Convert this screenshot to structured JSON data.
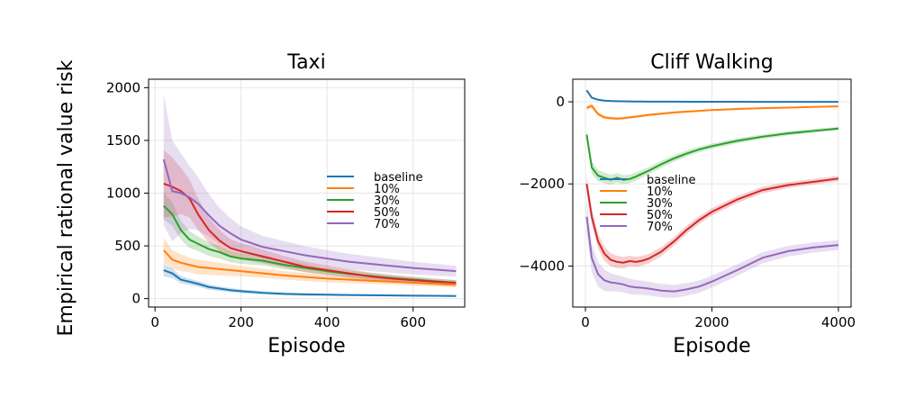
{
  "ylabel": "Empirical rational value risk",
  "colors": {
    "baseline": "#1f77b4",
    "10%": "#ff7f0e",
    "30%": "#2ca02c",
    "50%": "#d62728",
    "70%": "#9467bd"
  },
  "chart_data": [
    {
      "type": "line",
      "title": "Taxi",
      "xlabel": "Episode",
      "ylabel": "Empirical rational value risk",
      "xlim": [
        -15,
        720
      ],
      "ylim": [
        -80,
        2080
      ],
      "xticks": [
        0,
        200,
        400,
        600
      ],
      "yticks": [
        0,
        500,
        1000,
        1500,
        2000
      ],
      "grid": true,
      "legend_position": "center-right",
      "x": [
        20,
        40,
        60,
        80,
        100,
        125,
        150,
        175,
        200,
        250,
        300,
        350,
        400,
        450,
        500,
        550,
        600,
        650,
        700
      ],
      "series": [
        {
          "name": "baseline",
          "values": [
            270,
            240,
            180,
            160,
            140,
            110,
            95,
            80,
            70,
            55,
            45,
            40,
            37,
            34,
            32,
            30,
            28,
            27,
            25
          ],
          "band": [
            60,
            45,
            35,
            30,
            28,
            25,
            22,
            20,
            18,
            15,
            13,
            12,
            11,
            10,
            10,
            9,
            9,
            8,
            8
          ]
        },
        {
          "name": "10%",
          "values": [
            460,
            370,
            340,
            320,
            300,
            290,
            280,
            270,
            260,
            240,
            220,
            205,
            190,
            180,
            170,
            160,
            150,
            140,
            130
          ],
          "band": [
            120,
            90,
            80,
            70,
            70,
            65,
            60,
            55,
            50,
            45,
            40,
            38,
            35,
            33,
            30,
            28,
            27,
            26,
            25
          ]
        },
        {
          "name": "30%",
          "values": [
            880,
            800,
            650,
            560,
            520,
            470,
            440,
            400,
            380,
            360,
            320,
            290,
            260,
            235,
            215,
            195,
            180,
            165,
            150
          ],
          "band": [
            130,
            110,
            90,
            80,
            70,
            65,
            60,
            55,
            50,
            45,
            40,
            38,
            35,
            33,
            30,
            28,
            26,
            25,
            24
          ]
        },
        {
          "name": "50%",
          "values": [
            1090,
            1060,
            1020,
            950,
            800,
            650,
            550,
            480,
            450,
            400,
            350,
            300,
            270,
            240,
            210,
            190,
            175,
            160,
            150
          ],
          "band": [
            320,
            280,
            220,
            180,
            150,
            120,
            100,
            85,
            75,
            65,
            55,
            50,
            45,
            40,
            37,
            34,
            31,
            28,
            26
          ]
        },
        {
          "name": "70%",
          "values": [
            1320,
            1020,
            1000,
            960,
            900,
            790,
            690,
            620,
            560,
            490,
            450,
            410,
            380,
            350,
            330,
            310,
            290,
            275,
            260
          ],
          "band": [
            620,
            480,
            380,
            300,
            250,
            200,
            170,
            145,
            125,
            105,
            95,
            85,
            80,
            75,
            70,
            65,
            60,
            56,
            52
          ]
        }
      ]
    },
    {
      "type": "line",
      "title": "Cliff Walking",
      "xlabel": "Episode",
      "xlim": [
        -200,
        4200
      ],
      "ylim": [
        -5000,
        550
      ],
      "xticks": [
        0,
        2000,
        4000
      ],
      "yticks": [
        0,
        -2000,
        -4000
      ],
      "grid": true,
      "legend_position": "center-left",
      "x": [
        20,
        100,
        200,
        300,
        400,
        500,
        600,
        700,
        800,
        900,
        1000,
        1200,
        1400,
        1600,
        1800,
        2000,
        2400,
        2800,
        3200,
        3600,
        4000
      ],
      "series": [
        {
          "name": "baseline",
          "values": [
            280,
            100,
            50,
            30,
            20,
            15,
            12,
            10,
            8,
            6,
            5,
            4,
            3,
            2,
            2,
            1,
            1,
            0,
            0,
            0,
            0
          ],
          "band": [
            40,
            20,
            10,
            8,
            6,
            5,
            4,
            4,
            3,
            3,
            3,
            2,
            2,
            2,
            2,
            2,
            2,
            2,
            2,
            2,
            2
          ]
        },
        {
          "name": "10%",
          "values": [
            -150,
            -100,
            -300,
            -380,
            -400,
            -410,
            -400,
            -380,
            -360,
            -340,
            -320,
            -290,
            -260,
            -240,
            -220,
            -200,
            -175,
            -155,
            -140,
            -125,
            -110
          ],
          "band": [
            60,
            60,
            50,
            45,
            40,
            40,
            38,
            35,
            33,
            32,
            30,
            28,
            26,
            24,
            22,
            20,
            18,
            16,
            15,
            14,
            13
          ]
        },
        {
          "name": "30%",
          "values": [
            -800,
            -1600,
            -1800,
            -1850,
            -1900,
            -1850,
            -1900,
            -1880,
            -1820,
            -1750,
            -1680,
            -1520,
            -1380,
            -1260,
            -1160,
            -1080,
            -950,
            -850,
            -770,
            -710,
            -650
          ],
          "band": [
            120,
            150,
            140,
            130,
            120,
            115,
            110,
            105,
            100,
            95,
            90,
            85,
            80,
            75,
            70,
            65,
            60,
            55,
            50,
            45,
            40
          ]
        },
        {
          "name": "50%",
          "values": [
            -2000,
            -2800,
            -3400,
            -3700,
            -3850,
            -3900,
            -3920,
            -3880,
            -3900,
            -3870,
            -3820,
            -3650,
            -3400,
            -3120,
            -2880,
            -2680,
            -2380,
            -2150,
            -2030,
            -1950,
            -1870
          ],
          "band": [
            200,
            200,
            180,
            170,
            160,
            150,
            140,
            130,
            125,
            120,
            115,
            110,
            105,
            100,
            95,
            90,
            85,
            80,
            75,
            70,
            65
          ]
        },
        {
          "name": "70%",
          "values": [
            -2800,
            -3800,
            -4200,
            -4350,
            -4400,
            -4420,
            -4450,
            -4500,
            -4520,
            -4530,
            -4550,
            -4600,
            -4620,
            -4570,
            -4500,
            -4380,
            -4100,
            -3800,
            -3640,
            -3550,
            -3490
          ],
          "band": [
            400,
            350,
            300,
            260,
            220,
            200,
            190,
            185,
            180,
            175,
            170,
            165,
            160,
            155,
            150,
            145,
            140,
            135,
            130,
            125,
            120
          ]
        }
      ]
    }
  ]
}
